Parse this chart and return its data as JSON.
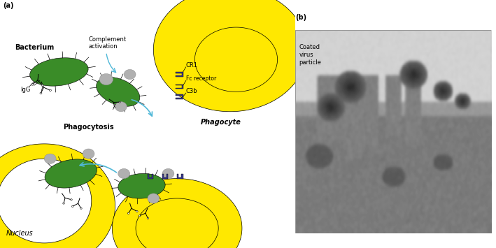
{
  "fig_width": 7.09,
  "fig_height": 3.55,
  "dpi": 100,
  "bg_color": "#ffffff",
  "panel_a_label": "(a)",
  "panel_b_label": "(b)",
  "yellow_color": "#FFE800",
  "green_color": "#3A8C28",
  "gray_color": "#B0B0B0",
  "purple_color": "#3A3A90",
  "black_color": "#000000",
  "white_color": "#FFFFFF",
  "arrow_color": "#50B8D8",
  "text_bacterium": "Bacterium",
  "text_complement": "Complement\nactivation",
  "text_phagocyte": "Phagocyte",
  "text_phagocytosis": "Phagocytosis",
  "text_nucleus": "Nucleus",
  "text_igg": "IgG",
  "text_cr1": "CR1",
  "text_fc_receptor": "Fc receptor",
  "text_c3b": "C3b",
  "text_coated": "Coated\nvirus\nparticle",
  "label_fontsize": 7,
  "small_fontsize": 6,
  "bold_fontsize": 7
}
